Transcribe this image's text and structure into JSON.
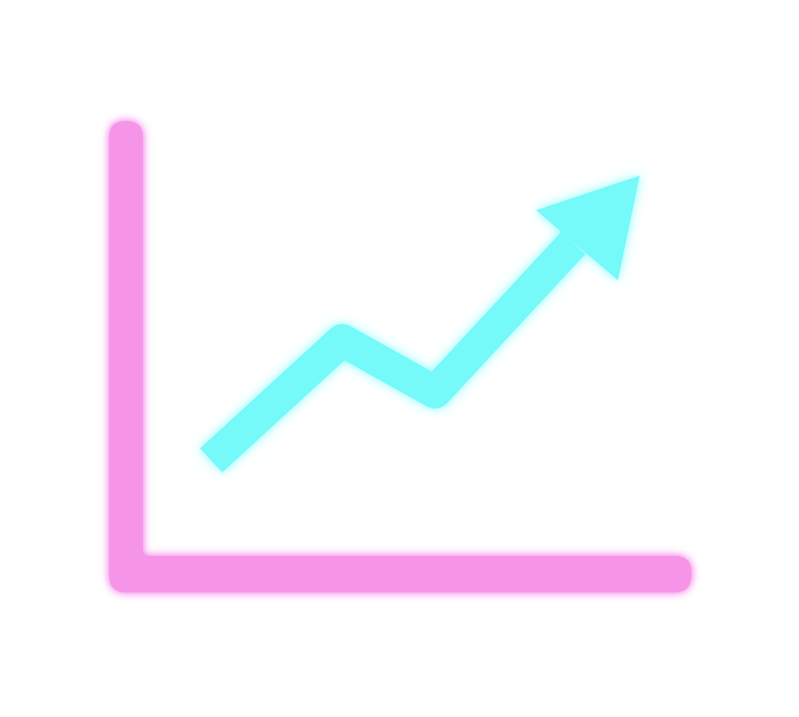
{
  "icon": {
    "name": "growth-chart-icon",
    "axes_color": "#f694e8",
    "axes_glow_color": "#ef5fe0",
    "trend_color": "#74f9f9",
    "trend_glow_color": "#8cfcfc",
    "trend_direction": "up"
  }
}
